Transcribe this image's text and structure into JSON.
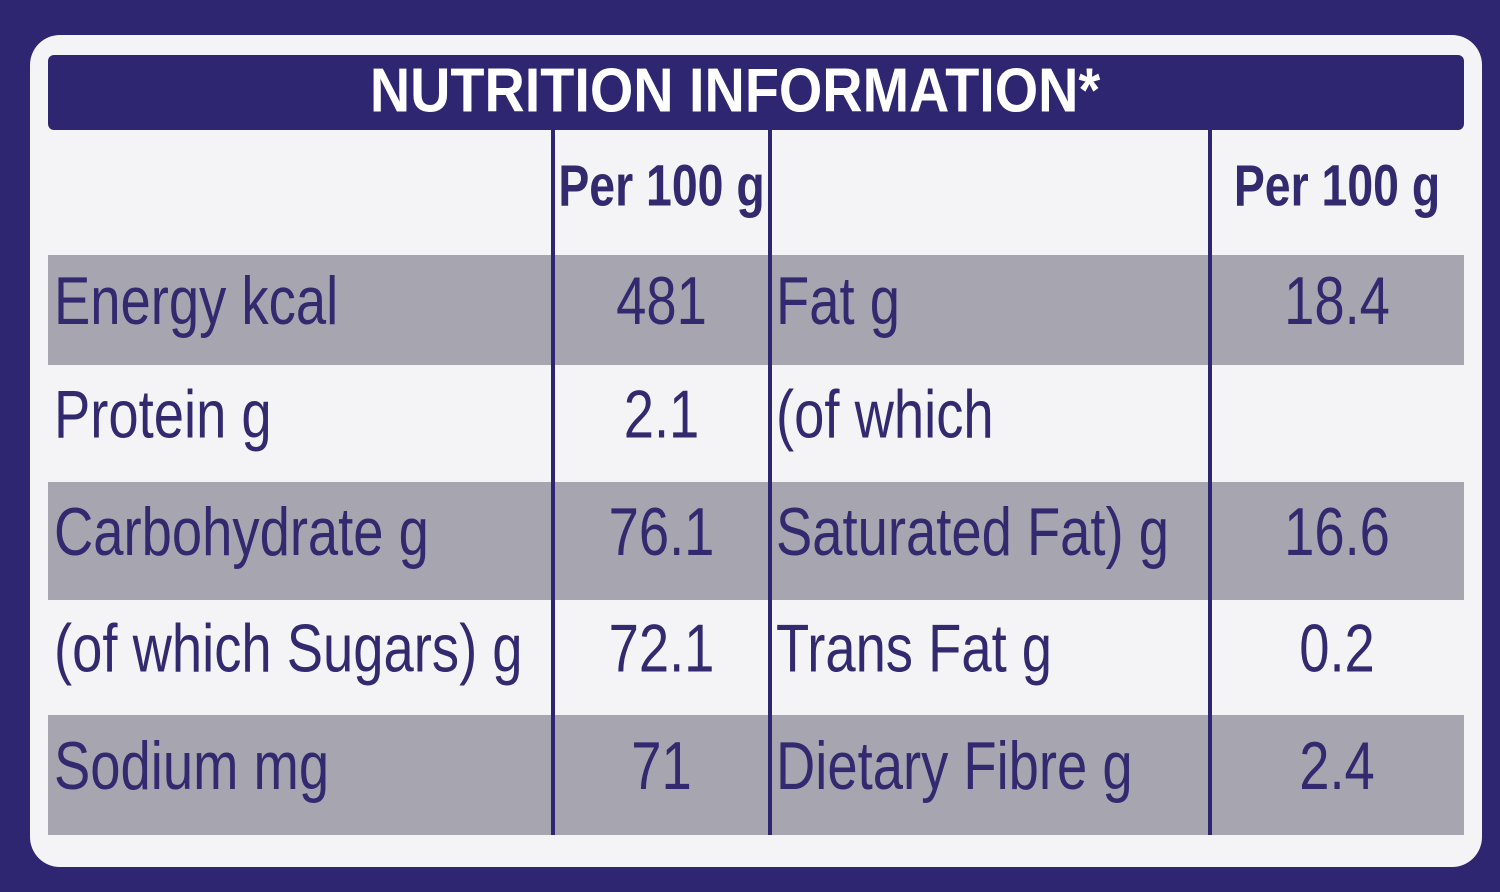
{
  "title": "NUTRITION INFORMATION*",
  "table": {
    "header": [
      null,
      "Per 100 g",
      null,
      "Per 100 g"
    ],
    "rows": [
      [
        "Energy kcal",
        "481",
        "Fat g",
        "18.4"
      ],
      [
        "Protein g",
        "2.1",
        "(of which",
        null
      ],
      [
        "Carbohydrate g",
        "76.1",
        "Saturated Fat) g",
        "16.6"
      ],
      [
        "(of which Sugars) g",
        "72.1",
        "Trans Fat g",
        "0.2"
      ],
      [
        "Sodium mg",
        "71",
        "Dietary Fibre g",
        "2.4"
      ]
    ]
  }
}
